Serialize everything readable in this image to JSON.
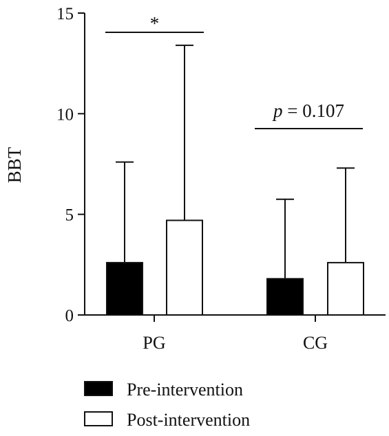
{
  "chart_data": {
    "type": "bar",
    "title": "",
    "xlabel": "",
    "ylabel": "BBT",
    "ylim": [
      0,
      15
    ],
    "yticks": [
      0,
      5,
      10,
      15
    ],
    "categories": [
      "PG",
      "CG"
    ],
    "series": [
      {
        "name": "Pre-intervention",
        "values": [
          2.6,
          1.8
        ],
        "error_upper": [
          7.6,
          5.75
        ],
        "fill": "#000000"
      },
      {
        "name": "Post-intervention",
        "values": [
          4.7,
          2.6
        ],
        "error_upper": [
          13.4,
          7.3
        ],
        "fill": "#ffffff"
      }
    ],
    "annotations": [
      {
        "category": "PG",
        "text": "*",
        "italic_prefix": ""
      },
      {
        "category": "CG",
        "text": " = 0.107",
        "italic_prefix": "p"
      }
    ],
    "grid": false,
    "legend": "bottom-left"
  }
}
